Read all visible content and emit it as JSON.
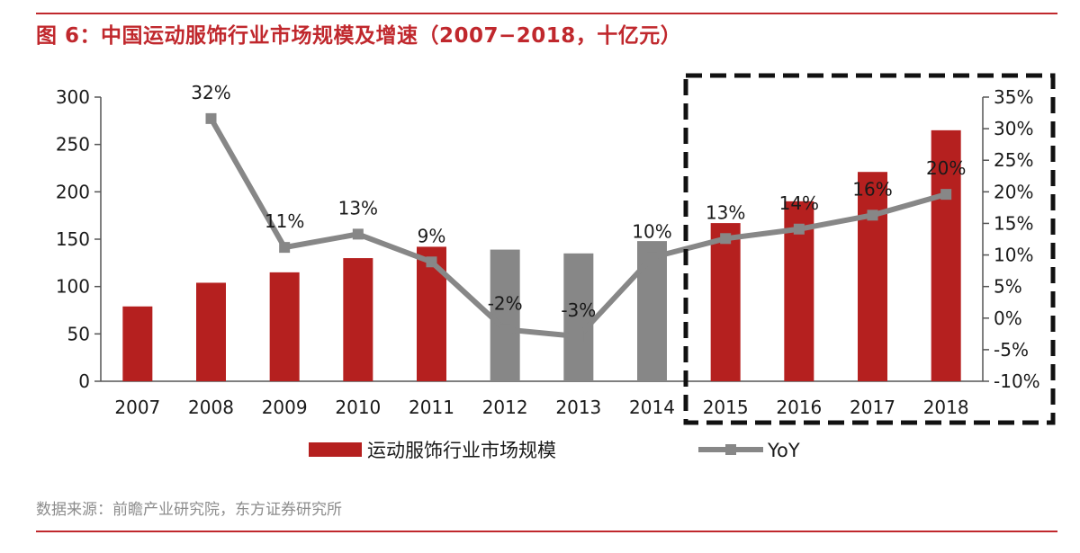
{
  "title": "图 6：中国运动服饰行业市场规模及增速（2007−2018，十亿元）",
  "source": "数据来源：前瞻产业研究院，东方证券研究所",
  "colors": {
    "accent": "#c0282d",
    "bar_red": "#b5201f",
    "bar_gray": "#878787",
    "line": "#878787"
  },
  "chart_data": {
    "type": "bar",
    "categories": [
      "2007",
      "2008",
      "2009",
      "2010",
      "2011",
      "2012",
      "2013",
      "2014",
      "2015",
      "2016",
      "2017",
      "2018"
    ],
    "bar_colors": [
      "red",
      "red",
      "red",
      "red",
      "red",
      "gray",
      "gray",
      "gray",
      "red",
      "red",
      "red",
      "red"
    ],
    "series": [
      {
        "name": "运动服饰行业市场规模",
        "type": "bar",
        "axis": "left",
        "values": [
          79,
          104,
          115,
          130,
          142,
          139,
          135,
          148,
          167,
          190,
          221,
          265
        ]
      },
      {
        "name": "YoY",
        "type": "line",
        "axis": "right",
        "values": [
          null,
          31.6,
          11.2,
          13.3,
          8.9,
          -1.8,
          -2.9,
          9.6,
          12.6,
          14.1,
          16.3,
          19.6
        ],
        "labels": [
          "",
          "32%",
          "11%",
          "13%",
          "9%",
          "-2%",
          "-3%",
          "10%",
          "13%",
          "14%",
          "16%",
          "20%"
        ]
      }
    ],
    "left_axis": {
      "ticks": [
        "0",
        "50",
        "100",
        "150",
        "200",
        "250",
        "300"
      ],
      "ylim": [
        0,
        300
      ]
    },
    "right_axis": {
      "ticks": [
        "-10%",
        "-5%",
        "0%",
        "5%",
        "10%",
        "15%",
        "20%",
        "25%",
        "30%",
        "35%"
      ],
      "ylim": [
        -10,
        35
      ]
    },
    "legend_placement": "bottom",
    "highlight": "dashed box around 2015–2018"
  }
}
